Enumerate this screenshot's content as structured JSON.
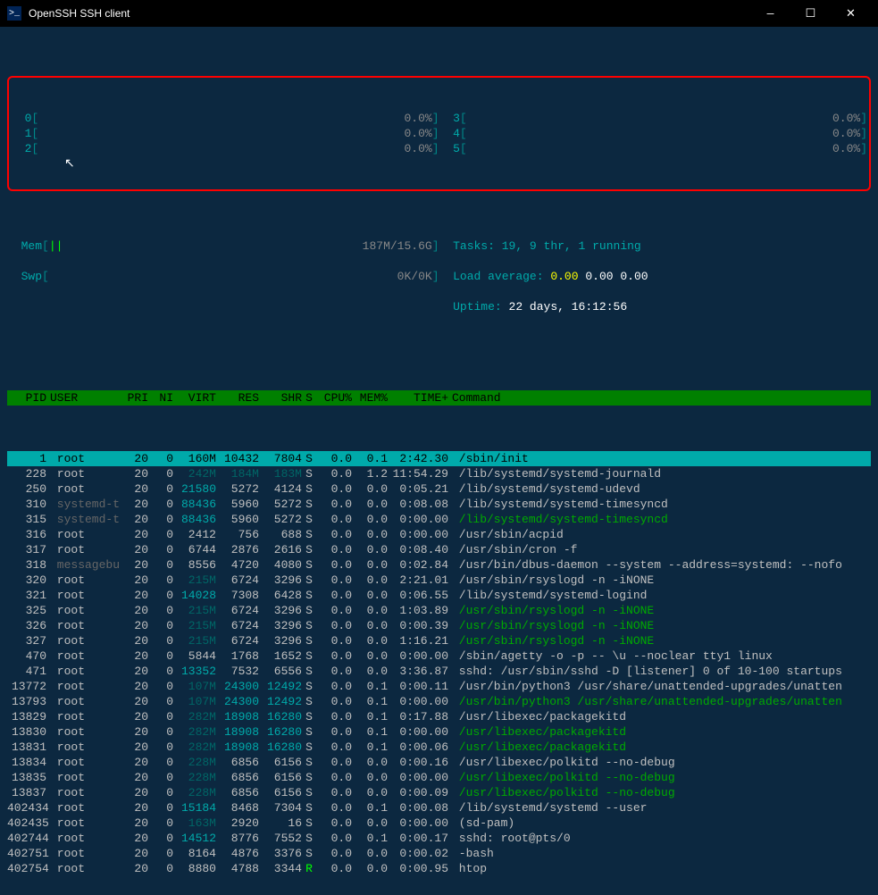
{
  "titlebar": {
    "icon_label": ">_",
    "title": "OpenSSH SSH client",
    "minimize": "—",
    "maximize": "☐",
    "close": "✕"
  },
  "cpu_meters": {
    "left": [
      {
        "id": "0",
        "pct": "0.0%"
      },
      {
        "id": "1",
        "pct": "0.0%"
      },
      {
        "id": "2",
        "pct": "0.0%"
      }
    ],
    "right": [
      {
        "id": "3",
        "pct": "0.0%"
      },
      {
        "id": "4",
        "pct": "0.0%"
      },
      {
        "id": "5",
        "pct": "0.0%"
      }
    ]
  },
  "mem": {
    "label": "Mem",
    "bars": "||",
    "value": "187M/15.6G"
  },
  "swp": {
    "label": "Swp",
    "value": "0K/0K"
  },
  "tasks": "Tasks: 19, 9 thr, 1 running",
  "load_label": "Load average:",
  "load_values": "0.00 0.00 0.00",
  "uptime_label": "Uptime:",
  "uptime_value": "22 days, 16:12:56",
  "headers": {
    "pid": "PID",
    "user": "USER",
    "pri": "PRI",
    "ni": "NI",
    "virt": "VIRT",
    "res": "RES",
    "shr": "SHR",
    "s": "S",
    "cpu": "CPU%",
    "mem": "MEM%",
    "time": "TIME+",
    "cmd": "Command"
  },
  "rows": [
    {
      "selected": true,
      "pid": "1",
      "user": "root",
      "pri": "20",
      "ni": "0",
      "virt": "160M",
      "res": "10432",
      "shr": "7804",
      "s": "S",
      "cpu": "0.0",
      "mem": "0.1",
      "time": "2:42.30",
      "cmd": "/sbin/init",
      "cmd_color": "#c0c0c0"
    },
    {
      "pid": "228",
      "user": "root",
      "pri": "20",
      "ni": "0",
      "virt": "242M",
      "virt_dim": true,
      "res": "184M",
      "res_dim": true,
      "shr": "183M",
      "shr_dim": true,
      "s": "S",
      "cpu": "0.0",
      "mem": "1.2",
      "time": "11:54.29",
      "cmd": "/lib/systemd/systemd-journald",
      "cmd_color": "#c0c0c0"
    },
    {
      "pid": "250",
      "user": "root",
      "pri": "20",
      "ni": "0",
      "virt": "21580",
      "virt_teal": true,
      "res": "5272",
      "shr": "4124",
      "s": "S",
      "cpu": "0.0",
      "mem": "0.0",
      "time": "0:05.21",
      "cmd": "/lib/systemd/systemd-udevd",
      "cmd_color": "#c0c0c0"
    },
    {
      "pid": "310",
      "user": "systemd-t",
      "user_dim": true,
      "pri": "20",
      "ni": "0",
      "virt": "88436",
      "virt_teal": true,
      "res": "5960",
      "shr": "5272",
      "s": "S",
      "cpu": "0.0",
      "mem": "0.0",
      "time": "0:08.08",
      "cmd": "/lib/systemd/systemd-timesyncd",
      "cmd_color": "#c0c0c0"
    },
    {
      "pid": "315",
      "user": "systemd-t",
      "user_dim": true,
      "pri": "20",
      "ni": "0",
      "virt": "88436",
      "virt_teal": true,
      "res": "5960",
      "shr": "5272",
      "s": "S",
      "cpu": "0.0",
      "mem": "0.0",
      "time": "0:00.00",
      "cmd": "/lib/systemd/systemd-timesyncd",
      "cmd_color": "#00aa00"
    },
    {
      "pid": "316",
      "user": "root",
      "pri": "20",
      "ni": "0",
      "virt": "2412",
      "res": "756",
      "shr": "688",
      "s": "S",
      "cpu": "0.0",
      "mem": "0.0",
      "time": "0:00.00",
      "cmd": "/usr/sbin/acpid",
      "cmd_color": "#c0c0c0"
    },
    {
      "pid": "317",
      "user": "root",
      "pri": "20",
      "ni": "0",
      "virt": "6744",
      "res": "2876",
      "shr": "2616",
      "s": "S",
      "cpu": "0.0",
      "mem": "0.0",
      "time": "0:08.40",
      "cmd": "/usr/sbin/cron -f",
      "cmd_color": "#c0c0c0"
    },
    {
      "pid": "318",
      "user": "messagebu",
      "user_dim": true,
      "pri": "20",
      "ni": "0",
      "virt": "8556",
      "res": "4720",
      "shr": "4080",
      "s": "S",
      "cpu": "0.0",
      "mem": "0.0",
      "time": "0:02.84",
      "cmd": "/usr/bin/dbus-daemon --system --address=systemd: --nofo",
      "cmd_color": "#c0c0c0"
    },
    {
      "pid": "320",
      "user": "root",
      "pri": "20",
      "ni": "0",
      "virt": "215M",
      "virt_dim": true,
      "res": "6724",
      "shr": "3296",
      "s": "S",
      "cpu": "0.0",
      "mem": "0.0",
      "time": "2:21.01",
      "cmd": "/usr/sbin/rsyslogd -n -iNONE",
      "cmd_color": "#c0c0c0"
    },
    {
      "pid": "321",
      "user": "root",
      "pri": "20",
      "ni": "0",
      "virt": "14028",
      "virt_teal": true,
      "res": "7308",
      "shr": "6428",
      "s": "S",
      "cpu": "0.0",
      "mem": "0.0",
      "time": "0:06.55",
      "cmd": "/lib/systemd/systemd-logind",
      "cmd_color": "#c0c0c0"
    },
    {
      "pid": "325",
      "user": "root",
      "pri": "20",
      "ni": "0",
      "virt": "215M",
      "virt_dim": true,
      "res": "6724",
      "shr": "3296",
      "s": "S",
      "cpu": "0.0",
      "mem": "0.0",
      "time": "1:03.89",
      "cmd": "/usr/sbin/rsyslogd -n -iNONE",
      "cmd_color": "#00aa00"
    },
    {
      "pid": "326",
      "user": "root",
      "pri": "20",
      "ni": "0",
      "virt": "215M",
      "virt_dim": true,
      "res": "6724",
      "shr": "3296",
      "s": "S",
      "cpu": "0.0",
      "mem": "0.0",
      "time": "0:00.39",
      "cmd": "/usr/sbin/rsyslogd -n -iNONE",
      "cmd_color": "#00aa00"
    },
    {
      "pid": "327",
      "user": "root",
      "pri": "20",
      "ni": "0",
      "virt": "215M",
      "virt_dim": true,
      "res": "6724",
      "shr": "3296",
      "s": "S",
      "cpu": "0.0",
      "mem": "0.0",
      "time": "1:16.21",
      "cmd": "/usr/sbin/rsyslogd -n -iNONE",
      "cmd_color": "#00aa00"
    },
    {
      "pid": "470",
      "user": "root",
      "pri": "20",
      "ni": "0",
      "virt": "5844",
      "res": "1768",
      "shr": "1652",
      "s": "S",
      "cpu": "0.0",
      "mem": "0.0",
      "time": "0:00.00",
      "cmd": "/sbin/agetty -o -p -- \\u --noclear tty1 linux",
      "cmd_color": "#c0c0c0"
    },
    {
      "pid": "471",
      "user": "root",
      "pri": "20",
      "ni": "0",
      "virt": "13352",
      "virt_teal": true,
      "res": "7532",
      "shr": "6556",
      "s": "S",
      "cpu": "0.0",
      "mem": "0.0",
      "time": "3:36.87",
      "cmd": "sshd: /usr/sbin/sshd -D [listener] 0 of 10-100 startups",
      "cmd_color": "#c0c0c0"
    },
    {
      "pid": "13772",
      "user": "root",
      "pri": "20",
      "ni": "0",
      "virt": "107M",
      "virt_dim": true,
      "res": "24300",
      "res_teal": true,
      "shr": "12492",
      "shr_teal": true,
      "s": "S",
      "cpu": "0.0",
      "mem": "0.1",
      "time": "0:00.11",
      "cmd": "/usr/bin/python3 /usr/share/unattended-upgrades/unatten",
      "cmd_color": "#c0c0c0"
    },
    {
      "pid": "13793",
      "user": "root",
      "pri": "20",
      "ni": "0",
      "virt": "107M",
      "virt_dim": true,
      "res": "24300",
      "res_teal": true,
      "shr": "12492",
      "shr_teal": true,
      "s": "S",
      "cpu": "0.0",
      "mem": "0.1",
      "time": "0:00.00",
      "cmd": "/usr/bin/python3 /usr/share/unattended-upgrades/unatten",
      "cmd_color": "#00aa00"
    },
    {
      "pid": "13829",
      "user": "root",
      "pri": "20",
      "ni": "0",
      "virt": "282M",
      "virt_dim": true,
      "res": "18908",
      "res_teal": true,
      "shr": "16280",
      "shr_teal": true,
      "s": "S",
      "cpu": "0.0",
      "mem": "0.1",
      "time": "0:17.88",
      "cmd": "/usr/libexec/packagekitd",
      "cmd_color": "#c0c0c0"
    },
    {
      "pid": "13830",
      "user": "root",
      "pri": "20",
      "ni": "0",
      "virt": "282M",
      "virt_dim": true,
      "res": "18908",
      "res_teal": true,
      "shr": "16280",
      "shr_teal": true,
      "s": "S",
      "cpu": "0.0",
      "mem": "0.1",
      "time": "0:00.00",
      "cmd": "/usr/libexec/packagekitd",
      "cmd_color": "#00aa00"
    },
    {
      "pid": "13831",
      "user": "root",
      "pri": "20",
      "ni": "0",
      "virt": "282M",
      "virt_dim": true,
      "res": "18908",
      "res_teal": true,
      "shr": "16280",
      "shr_teal": true,
      "s": "S",
      "cpu": "0.0",
      "mem": "0.1",
      "time": "0:00.06",
      "cmd": "/usr/libexec/packagekitd",
      "cmd_color": "#00aa00"
    },
    {
      "pid": "13834",
      "user": "root",
      "pri": "20",
      "ni": "0",
      "virt": "228M",
      "virt_dim": true,
      "res": "6856",
      "shr": "6156",
      "s": "S",
      "cpu": "0.0",
      "mem": "0.0",
      "time": "0:00.16",
      "cmd": "/usr/libexec/polkitd --no-debug",
      "cmd_color": "#c0c0c0"
    },
    {
      "pid": "13835",
      "user": "root",
      "pri": "20",
      "ni": "0",
      "virt": "228M",
      "virt_dim": true,
      "res": "6856",
      "shr": "6156",
      "s": "S",
      "cpu": "0.0",
      "mem": "0.0",
      "time": "0:00.00",
      "cmd": "/usr/libexec/polkitd --no-debug",
      "cmd_color": "#00aa00"
    },
    {
      "pid": "13837",
      "user": "root",
      "pri": "20",
      "ni": "0",
      "virt": "228M",
      "virt_dim": true,
      "res": "6856",
      "shr": "6156",
      "s": "S",
      "cpu": "0.0",
      "mem": "0.0",
      "time": "0:00.09",
      "cmd": "/usr/libexec/polkitd --no-debug",
      "cmd_color": "#00aa00"
    },
    {
      "pid": "402434",
      "user": "root",
      "pri": "20",
      "ni": "0",
      "virt": "15184",
      "virt_teal": true,
      "res": "8468",
      "shr": "7304",
      "s": "S",
      "cpu": "0.0",
      "mem": "0.1",
      "time": "0:00.08",
      "cmd": "/lib/systemd/systemd --user",
      "cmd_color": "#c0c0c0"
    },
    {
      "pid": "402435",
      "user": "root",
      "pri": "20",
      "ni": "0",
      "virt": "163M",
      "virt_dim": true,
      "res": "2920",
      "shr": "16",
      "s": "S",
      "cpu": "0.0",
      "mem": "0.0",
      "time": "0:00.00",
      "cmd": "(sd-pam)",
      "cmd_color": "#c0c0c0"
    },
    {
      "pid": "402744",
      "user": "root",
      "pri": "20",
      "ni": "0",
      "virt": "14512",
      "virt_teal": true,
      "res": "8776",
      "shr": "7552",
      "s": "S",
      "cpu": "0.0",
      "mem": "0.1",
      "time": "0:00.17",
      "cmd": "sshd: root@pts/0",
      "cmd_color": "#c0c0c0"
    },
    {
      "pid": "402751",
      "user": "root",
      "pri": "20",
      "ni": "0",
      "virt": "8164",
      "res": "4876",
      "shr": "3376",
      "s": "S",
      "cpu": "0.0",
      "mem": "0.0",
      "time": "0:00.02",
      "cmd": "-bash",
      "cmd_color": "#c0c0c0"
    },
    {
      "pid": "402754",
      "user": "root",
      "pri": "20",
      "ni": "0",
      "virt": "8880",
      "res": "4788",
      "shr": "3344",
      "s": "R",
      "s_green": true,
      "cpu": "0.0",
      "mem": "0.0",
      "time": "0:00.95",
      "cmd": "htop",
      "cmd_color": "#c0c0c0"
    }
  ]
}
